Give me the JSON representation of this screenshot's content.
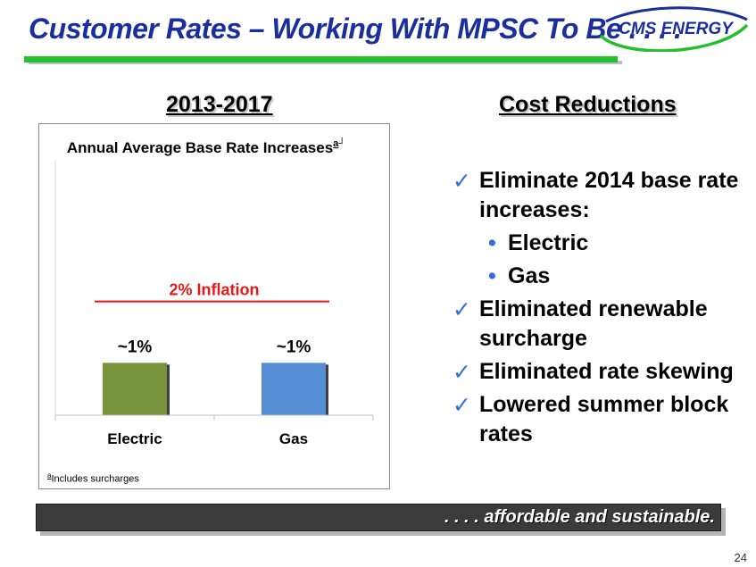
{
  "header": {
    "title": "Customer Rates – Working With MPSC To Be . . . .",
    "logo_text": "CMS ENERGY"
  },
  "left_section": {
    "heading": "2013-2017"
  },
  "right_section": {
    "heading": "Cost Reductions"
  },
  "chart_data": {
    "type": "bar",
    "title": "Annual Average Base Rate Increases",
    "title_footnote_mark": "a",
    "categories": [
      "Electric",
      "Gas"
    ],
    "values": [
      1,
      1
    ],
    "data_labels": [
      "~1%",
      "~1%"
    ],
    "bar_colors": [
      "#77933c",
      "#558ed5"
    ],
    "ylim": [
      0,
      3
    ],
    "reference_line": {
      "label": "2% Inflation",
      "value": 2,
      "color": "#e81818"
    },
    "footnote_mark": "a",
    "footnote": "Includes surcharges",
    "grid": false
  },
  "bullets": [
    {
      "type": "check",
      "text": "Eliminate 2014 base rate increases:"
    },
    {
      "type": "sub",
      "text": "Electric"
    },
    {
      "type": "sub",
      "text": "Gas"
    },
    {
      "type": "check",
      "text": "Eliminated renewable surcharge"
    },
    {
      "type": "check",
      "text": "Eliminated rate skewing"
    },
    {
      "type": "check",
      "text": "Lowered summer block rates"
    }
  ],
  "banner": {
    "text": ". . . . affordable and sustainable."
  },
  "page_number": "24",
  "colors": {
    "title": "#1a2ea0",
    "title_rule": "#22c02a",
    "check": "#2f6fd6",
    "inflation": "#e81818"
  }
}
